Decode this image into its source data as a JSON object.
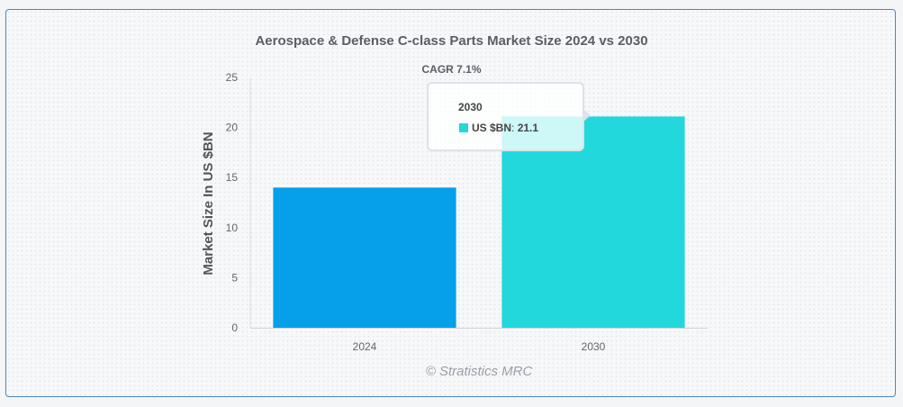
{
  "chart_data": {
    "type": "bar",
    "title": "Aerospace & Defense C-class Parts Market Size 2024 vs 2030",
    "subtitle": "CAGR 7.1%",
    "categories": [
      "2024",
      "2030"
    ],
    "values": [
      14.0,
      21.1
    ],
    "series": [
      {
        "name": "US $BN",
        "values": [
          14.0,
          21.1
        ]
      }
    ],
    "bar_colors": [
      "#069fe9",
      "#22d8dc"
    ],
    "ylabel": "Market Size In US $BN",
    "xlabel": "",
    "ylim": [
      0,
      25
    ],
    "yticks": [
      0,
      5,
      10,
      15,
      20,
      25
    ],
    "grid": false,
    "credits": "© Stratistics MRC"
  },
  "tooltip": {
    "title": "2030",
    "label": "US $BN",
    "separator": ": ",
    "value": "21.1",
    "color": "#22d8dc"
  }
}
